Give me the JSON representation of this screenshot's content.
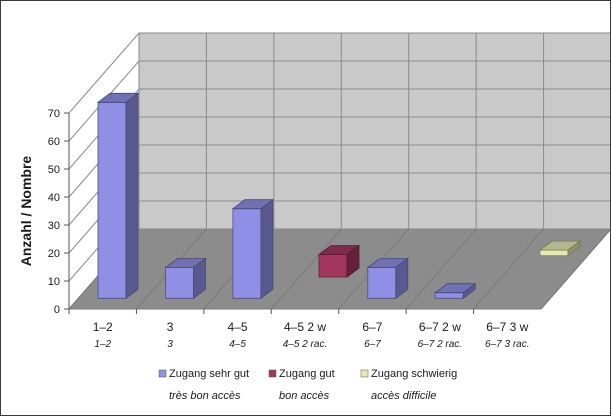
{
  "chart_data": {
    "type": "bar",
    "title": "",
    "xlabel": "",
    "ylabel": "Anzahl / Nombre",
    "ylim": [
      0,
      70
    ],
    "yticks": [
      0,
      10,
      20,
      30,
      40,
      50,
      60,
      70
    ],
    "grid": true,
    "legend_position": "bottom",
    "categories": [
      {
        "label": "1–2",
        "sublabel": "1–2"
      },
      {
        "label": "3",
        "sublabel": "3"
      },
      {
        "label": "4–5",
        "sublabel": "4–5"
      },
      {
        "label": "4–5 2 w",
        "sublabel": "4–5 2 rac."
      },
      {
        "label": "6–7",
        "sublabel": "6–7"
      },
      {
        "label": "6–7 2 w",
        "sublabel": "6–7 2 rac."
      },
      {
        "label": "6–7 3 w",
        "sublabel": "6–7 3 rac."
      }
    ],
    "series": [
      {
        "name": "Zugang sehr gut",
        "name_fr": "très bon accès",
        "color": "#8f8fe6",
        "values": [
          70,
          11,
          32,
          null,
          11,
          2,
          null
        ]
      },
      {
        "name": "Zugang gut",
        "name_fr": "bon accès",
        "color": "#a3365d",
        "values": [
          null,
          null,
          null,
          8,
          null,
          null,
          null
        ]
      },
      {
        "name": "Zugang schwierig",
        "name_fr": "accès difficile",
        "color": "#e6eab0",
        "values": [
          null,
          null,
          null,
          null,
          null,
          null,
          2
        ]
      }
    ]
  }
}
